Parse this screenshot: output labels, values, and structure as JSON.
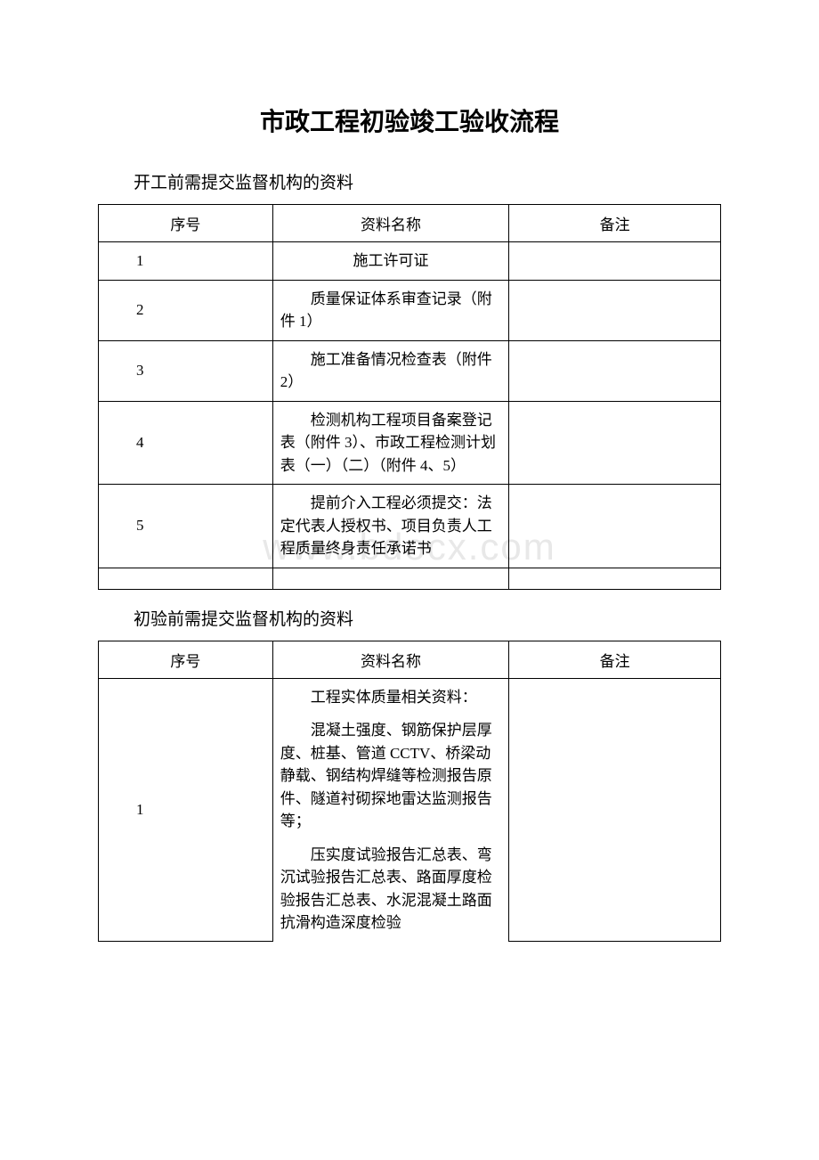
{
  "title": "市政工程初验竣工验收流程",
  "watermark": "www.bdocx.com",
  "section1": {
    "heading": "开工前需提交监督机构的资料",
    "columns": [
      "序号",
      "资料名称",
      "备注"
    ],
    "rows": [
      {
        "seq": "1",
        "name": "施工许可证",
        "note": ""
      },
      {
        "seq": "2",
        "name": "质量保证体系审查记录（附件 1）",
        "note": ""
      },
      {
        "seq": "3",
        "name": "施工准备情况检查表（附件 2）",
        "note": ""
      },
      {
        "seq": "4",
        "name": "检测机构工程项目备案登记表（附件 3）、市政工程检测计划表（一）（二）（附件 4、5）",
        "note": ""
      },
      {
        "seq": "5",
        "name": "提前介入工程必须提交：法定代表人授权书、项目负责人工程质量终身责任承诺书",
        "note": ""
      }
    ]
  },
  "section2": {
    "heading": "初验前需提交监督机构的资料",
    "columns": [
      "序号",
      "资料名称",
      "备注"
    ],
    "rows": [
      {
        "seq": "1",
        "paras": [
          "工程实体质量相关资料：",
          "混凝土强度、钢筋保护层厚度、桩基、管道 CCTV、桥梁动静载、钢结构焊缝等检测报告原件、隧道衬砌探地雷达监测报告等；",
          "压实度试验报告汇总表、弯沉试验报告汇总表、路面厚度检验报告汇总表、水泥混凝土路面抗滑构造深度检验"
        ],
        "note": ""
      }
    ]
  },
  "styles": {
    "background_color": "#ffffff",
    "text_color": "#000000",
    "border_color": "#000000",
    "watermark_color": "#e8e8e8",
    "title_fontsize": 28,
    "heading_fontsize": 19,
    "cell_fontsize": 17,
    "col_widths_pct": [
      28,
      38,
      34
    ]
  }
}
